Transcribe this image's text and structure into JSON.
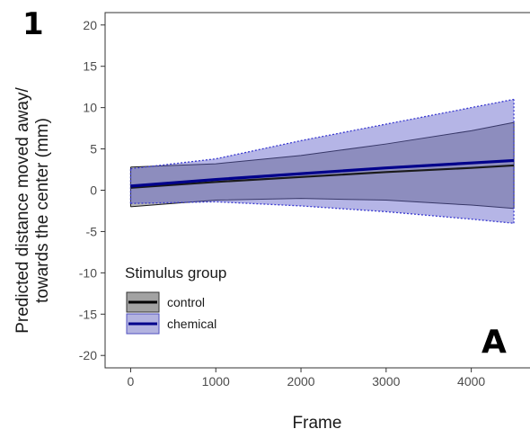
{
  "panel_number": "1",
  "panel_letter": "A",
  "chart_data": {
    "type": "line",
    "title": "",
    "xlabel": "Frame",
    "ylabel_lines": [
      "Predicted distance moved away/",
      "towards the center (mm)"
    ],
    "xlim": [
      -300,
      4700
    ],
    "ylim": [
      -21.5,
      21.5
    ],
    "x_ticks": [
      0,
      1000,
      2000,
      3000,
      4000
    ],
    "y_ticks": [
      -20,
      -15,
      -10,
      -5,
      0,
      5,
      10,
      15,
      20
    ],
    "x_tick_labels": [
      "0",
      "1000",
      "2000",
      "3000",
      "4000"
    ],
    "y_tick_labels": [
      "-20",
      "-15",
      "-10",
      "-5",
      "0",
      "5",
      "10",
      "15",
      "20"
    ],
    "grid": false,
    "legend": {
      "title": "Stimulus group",
      "position": "bottom-left",
      "entries": [
        {
          "label": "control",
          "fill": "#7a7a7a",
          "line": "#000000"
        },
        {
          "label": "chemical",
          "fill": "#9a9ad6",
          "line": "#00008b"
        }
      ]
    },
    "series": [
      {
        "name": "control",
        "line_color": "#1a1a1a",
        "band_fill": "#6e6e6e",
        "band_opacity": 0.5,
        "band_style": "solid",
        "x": [
          0,
          1000,
          2000,
          3000,
          4000,
          4500
        ],
        "y": [
          0.3,
          1.0,
          1.6,
          2.2,
          2.7,
          3.0
        ],
        "lower": [
          -2.0,
          -1.2,
          -1.0,
          -1.2,
          -1.8,
          -2.2
        ],
        "upper": [
          2.8,
          3.2,
          4.2,
          5.6,
          7.2,
          8.2
        ]
      },
      {
        "name": "chemical",
        "line_color": "#00008b",
        "band_fill": "#5a5ac8",
        "band_opacity": 0.45,
        "band_style": "dotted",
        "x": [
          0,
          1000,
          2000,
          3000,
          4000,
          4500
        ],
        "y": [
          0.5,
          1.3,
          2.0,
          2.7,
          3.3,
          3.6
        ],
        "lower": [
          -1.6,
          -1.4,
          -1.9,
          -2.6,
          -3.5,
          -4.0
        ],
        "upper": [
          2.6,
          3.8,
          6.0,
          8.0,
          10.0,
          11.0
        ]
      }
    ]
  }
}
